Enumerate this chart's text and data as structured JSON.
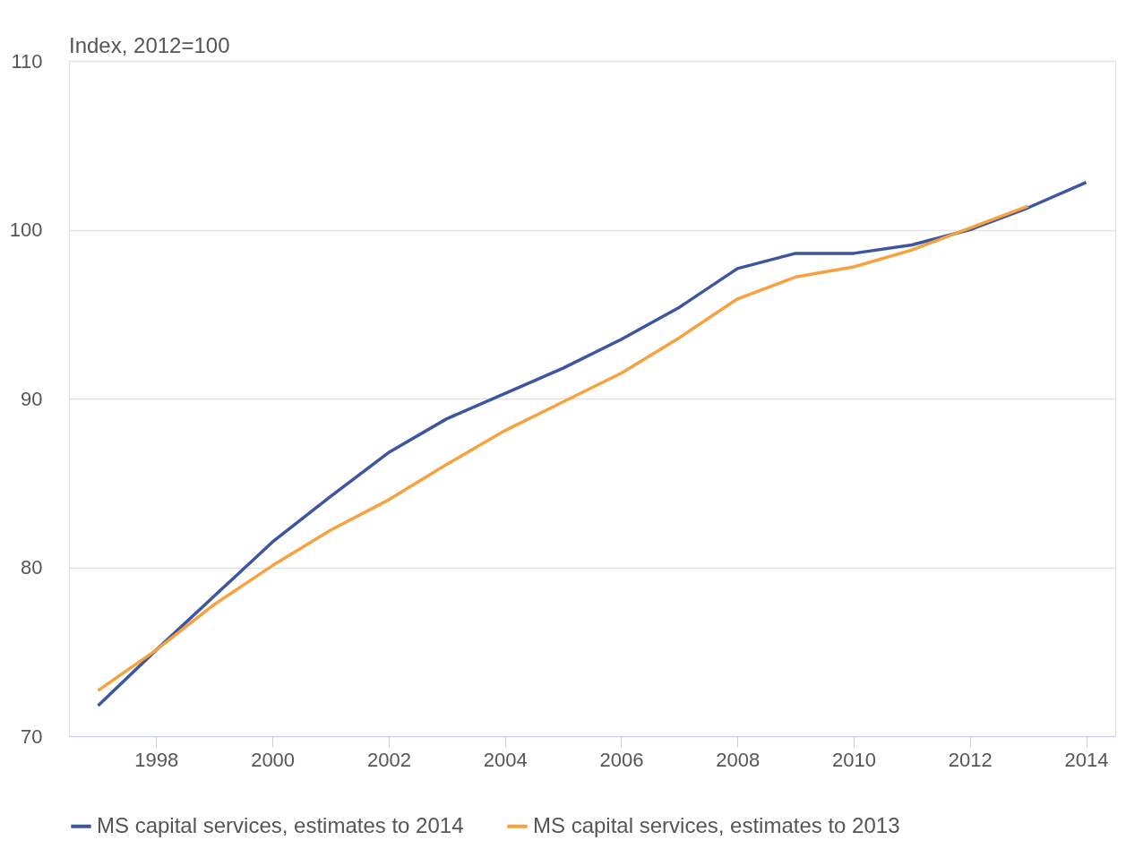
{
  "chart_data": {
    "type": "line",
    "ylabel": "Index, 2012=100",
    "x": [
      1997,
      1998,
      1999,
      2000,
      2001,
      2002,
      2003,
      2004,
      2005,
      2006,
      2007,
      2008,
      2009,
      2010,
      2011,
      2012,
      2013,
      2014
    ],
    "series": [
      {
        "name": "MS capital services, estimates to 2014",
        "color": "#3c56a0",
        "values": [
          71.8,
          75.1,
          78.3,
          81.5,
          84.2,
          86.8,
          88.8,
          90.3,
          91.8,
          93.5,
          95.4,
          97.7,
          98.6,
          98.6,
          99.1,
          100.0,
          101.3,
          102.8
        ]
      },
      {
        "name": "MS capital services, estimates to 2013",
        "color": "#f7a241",
        "values": [
          72.7,
          75.1,
          77.8,
          80.1,
          82.2,
          84.0,
          86.1,
          88.1,
          89.8,
          91.5,
          93.6,
          95.9,
          97.2,
          97.8,
          98.8,
          100.1,
          101.4,
          null
        ]
      }
    ],
    "xlim": [
      1996.5,
      2014.5
    ],
    "xticks": [
      1998,
      2000,
      2002,
      2004,
      2006,
      2008,
      2010,
      2012,
      2014
    ],
    "ylim": [
      70,
      110
    ],
    "yticks": [
      70,
      80,
      90,
      100,
      110
    ],
    "grid": "y",
    "legend": "bottom",
    "marker": "none",
    "line_style": "solid"
  }
}
